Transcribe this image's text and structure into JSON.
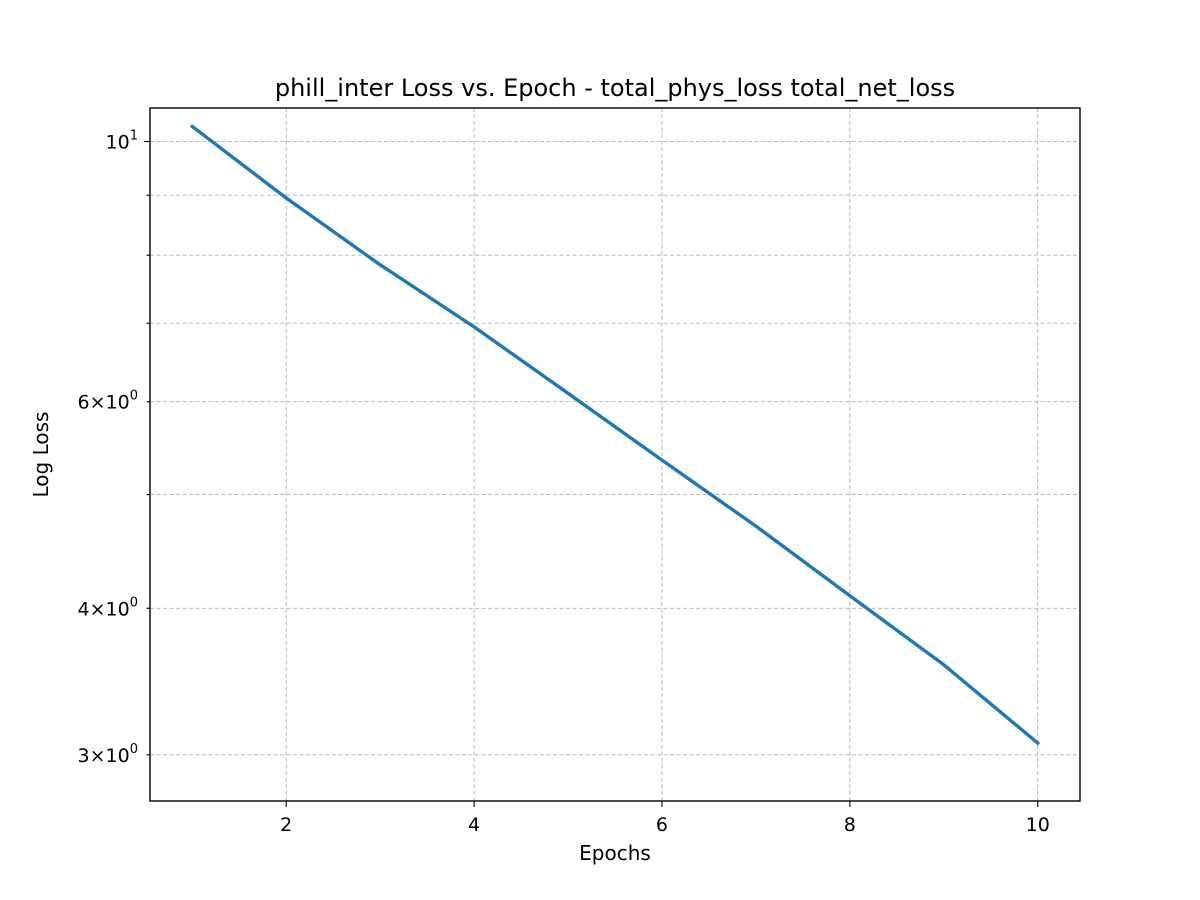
{
  "chart_data": {
    "type": "line",
    "title": "phill_inter Loss vs. Epoch - total_phys_loss total_net_loss",
    "xlabel": "Epochs",
    "ylabel": "Log Loss",
    "x_scale": "linear",
    "y_scale": "log",
    "xlim": [
      0.55,
      10.45
    ],
    "ylim": [
      2.74,
      10.68
    ],
    "grid": true,
    "x_ticks": [
      {
        "value": 2,
        "label": "2"
      },
      {
        "value": 4,
        "label": "4"
      },
      {
        "value": 6,
        "label": "6"
      },
      {
        "value": 8,
        "label": "8"
      },
      {
        "value": 10,
        "label": "10"
      }
    ],
    "y_major_ticks": [
      {
        "value": 10,
        "mantissa": "",
        "exponent": "1"
      }
    ],
    "y_minor_ticks": [
      {
        "value": 3,
        "mantissa": "3",
        "exponent": "0"
      },
      {
        "value": 4,
        "mantissa": "4",
        "exponent": "0"
      },
      {
        "value": 5,
        "mantissa": "",
        "exponent": ""
      },
      {
        "value": 6,
        "mantissa": "6",
        "exponent": "0"
      },
      {
        "value": 7,
        "mantissa": "",
        "exponent": ""
      },
      {
        "value": 8,
        "mantissa": "",
        "exponent": ""
      },
      {
        "value": 9,
        "mantissa": "",
        "exponent": ""
      }
    ],
    "series": [
      {
        "color": "#1f77b4",
        "x": [
          1,
          2,
          3,
          4,
          5,
          6,
          7,
          8,
          9,
          10
        ],
        "y": [
          10.3,
          8.95,
          7.85,
          6.95,
          6.1,
          5.35,
          4.7,
          4.1,
          3.58,
          3.07
        ]
      }
    ]
  }
}
